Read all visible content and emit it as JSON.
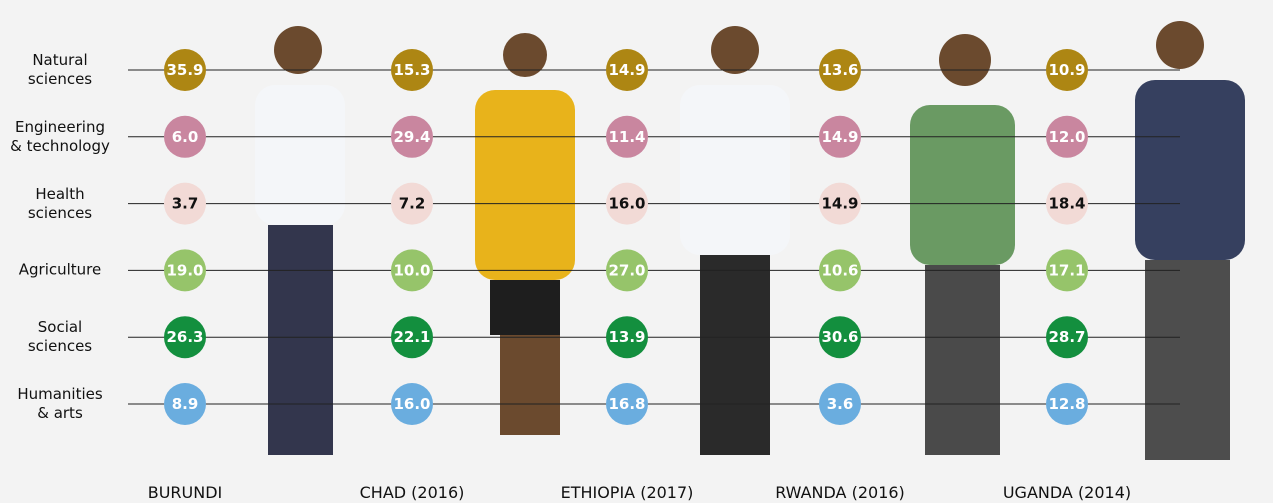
{
  "chart_data": {
    "type": "dot-matrix",
    "categories": [
      "BURUNDI",
      "CHAD (2016)",
      "ETHIOPIA (2017)",
      "RWANDA (2016)",
      "UGANDA (2014)"
    ],
    "series": [
      {
        "name": "Natural\nsciences",
        "color": "#ad8613",
        "text_color": "#ffffff",
        "values": [
          35.9,
          15.3,
          14.9,
          13.6,
          10.9
        ],
        "value_labels": [
          "35.9",
          "15.3",
          "14.9",
          "13.6",
          "10.9"
        ]
      },
      {
        "name": "Engineering\n& technology",
        "color": "#c9869f",
        "text_color": "#ffffff",
        "values": [
          6.0,
          29.4,
          11.4,
          14.9,
          12.0
        ],
        "value_labels": [
          "6.0",
          "29.4",
          "11.4",
          "14.9",
          "12.0"
        ]
      },
      {
        "name": "Health\nsciences",
        "color": "#f2dad6",
        "text_color": "#111111",
        "values": [
          3.7,
          7.2,
          16.0,
          14.9,
          18.4
        ],
        "value_labels": [
          "3.7",
          "7.2",
          "16.0",
          "14.9",
          "18.4"
        ]
      },
      {
        "name": "Agriculture",
        "color": "#96c46a",
        "text_color": "#ffffff",
        "values": [
          19.0,
          10.0,
          27.0,
          10.6,
          17.1
        ],
        "value_labels": [
          "19.0",
          "10.0",
          "27.0",
          "10.6",
          "17.1"
        ]
      },
      {
        "name": "Social\nsciences",
        "color": "#138f3e",
        "text_color": "#ffffff",
        "values": [
          26.3,
          22.1,
          13.9,
          30.6,
          28.7
        ],
        "value_labels": [
          "26.3",
          "22.1",
          "13.9",
          "30.6",
          "28.7"
        ]
      },
      {
        "name": "Humanities\n& arts",
        "color": "#6aaddf",
        "text_color": "#ffffff",
        "values": [
          8.9,
          16.0,
          16.8,
          3.6,
          12.8
        ],
        "value_labels": [
          "8.9",
          "16.0",
          "16.8",
          "3.6",
          "12.8"
        ]
      }
    ]
  }
}
